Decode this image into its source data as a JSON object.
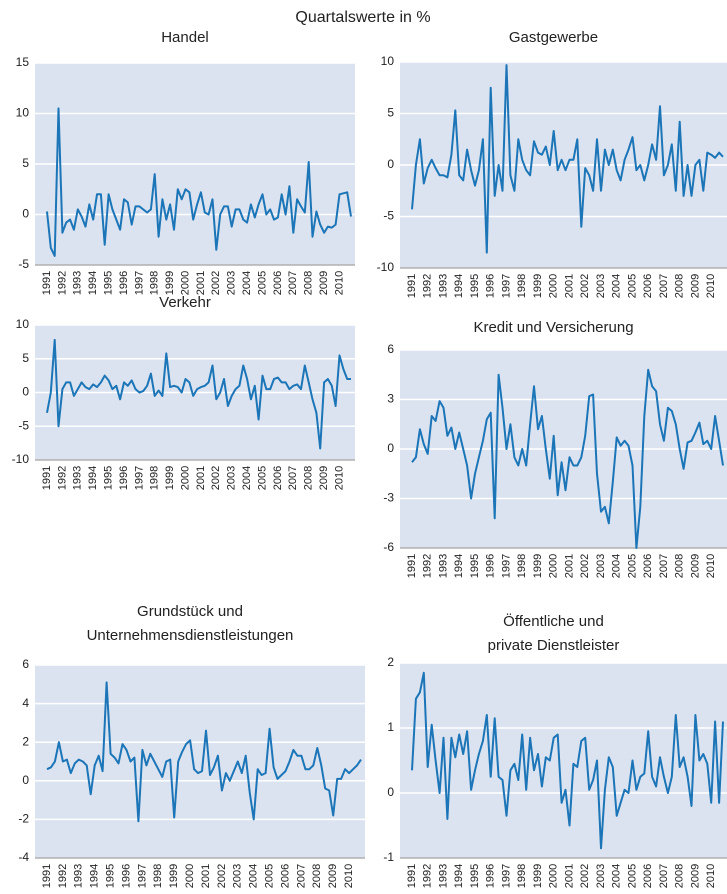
{
  "title": "Quartalswerte in %",
  "chart_data": [
    {
      "type": "line",
      "title": "Handel",
      "ylim": [
        -5,
        15
      ],
      "yticks": [
        -5,
        0,
        5,
        10,
        15
      ],
      "grid": true,
      "categories": [
        "1991",
        null,
        null,
        null,
        "1992",
        null,
        null,
        null,
        "1993",
        null,
        null,
        null,
        "1994",
        null,
        null,
        null,
        "1995",
        null,
        null,
        null,
        "1996",
        null,
        null,
        null,
        "1997",
        null,
        null,
        null,
        "1998",
        null,
        null,
        null,
        "1999",
        null,
        null,
        null,
        "2000",
        null,
        null,
        null,
        "2001",
        null,
        null,
        null,
        "2002",
        null,
        null,
        null,
        "2003",
        null,
        null,
        null,
        "2004",
        null,
        null,
        null,
        "2005",
        null,
        null,
        null,
        "2006",
        null,
        null,
        null,
        "2007",
        null,
        null,
        null,
        "2008",
        null,
        null,
        null,
        "2009",
        null,
        null,
        null,
        "2010",
        null,
        null,
        null
      ],
      "series": [
        {
          "color": "#1b75b7",
          "values": [
            0.3,
            -3.3,
            -4.1,
            10.5,
            -1.8,
            -0.8,
            -0.5,
            -1.5,
            0.5,
            -0.2,
            -1.2,
            1.0,
            -0.5,
            2.0,
            2.0,
            -3.0,
            2.0,
            0.5,
            -0.5,
            -1.5,
            1.5,
            1.2,
            -1.0,
            0.8,
            0.8,
            0.5,
            0.2,
            0.5,
            4.0,
            -2.2,
            1.5,
            -0.5,
            1.0,
            -1.5,
            2.5,
            1.5,
            2.5,
            2.2,
            -0.5,
            1.0,
            2.2,
            0.2,
            0.0,
            1.5,
            -3.5,
            0.0,
            0.8,
            0.8,
            -1.2,
            0.5,
            0.5,
            -0.5,
            -0.8,
            1.0,
            -0.3,
            1.0,
            2.0,
            0.0,
            0.5,
            -0.5,
            -0.3,
            2.0,
            0.0,
            2.8,
            -1.8,
            1.5,
            0.8,
            0.2,
            5.2,
            -2.2,
            0.3,
            -1.0,
            -1.8,
            -1.2,
            -1.3,
            -1.0,
            2.0,
            2.1,
            2.2,
            -0.2
          ]
        }
      ]
    },
    {
      "type": "line",
      "title": "Gastgewerbe",
      "ylim": [
        -10,
        10
      ],
      "yticks": [
        -10,
        -5,
        0,
        5,
        10
      ],
      "grid": true,
      "categories": [
        "1991",
        null,
        null,
        null,
        "1992",
        null,
        null,
        null,
        "1993",
        null,
        null,
        null,
        "1994",
        null,
        null,
        null,
        "1995",
        null,
        null,
        null,
        "1996",
        null,
        null,
        null,
        "1997",
        null,
        null,
        null,
        "1998",
        null,
        null,
        null,
        "1999",
        null,
        null,
        null,
        "2000",
        null,
        null,
        null,
        "2001",
        null,
        null,
        null,
        "2002",
        null,
        null,
        null,
        "2003",
        null,
        null,
        null,
        "2004",
        null,
        null,
        null,
        "2005",
        null,
        null,
        null,
        "2006",
        null,
        null,
        null,
        "2007",
        null,
        null,
        null,
        "2008",
        null,
        null,
        null,
        "2009",
        null,
        null,
        null,
        "2010",
        null,
        null,
        null
      ],
      "series": [
        {
          "color": "#1b75b7",
          "values": [
            -4.3,
            0.0,
            2.5,
            -1.8,
            -0.3,
            0.5,
            -0.3,
            -1.0,
            -1.0,
            -1.2,
            1.0,
            5.3,
            -1.0,
            -1.5,
            1.5,
            -0.5,
            -2.0,
            -0.5,
            2.5,
            -8.5,
            7.5,
            -3.0,
            0.0,
            -2.5,
            9.7,
            -1.0,
            -2.5,
            2.5,
            0.5,
            -0.5,
            -1.0,
            2.3,
            1.2,
            1.0,
            1.8,
            0.0,
            3.3,
            -0.5,
            0.5,
            -0.5,
            0.5,
            0.5,
            2.5,
            -6.0,
            -0.3,
            -1.0,
            -2.5,
            2.5,
            -2.5,
            1.5,
            0.0,
            1.5,
            -0.5,
            -1.5,
            0.5,
            1.5,
            2.7,
            -0.5,
            0.0,
            -1.5,
            0.0,
            2.0,
            0.5,
            5.7,
            -1.0,
            0.0,
            2.0,
            -2.5,
            4.2,
            -3.0,
            0.0,
            -3.0,
            0.0,
            0.5,
            -2.5,
            1.2,
            1.0,
            0.7,
            1.2,
            0.8
          ]
        }
      ]
    },
    {
      "type": "line",
      "title": "Verkehr",
      "ylim": [
        -10,
        10
      ],
      "yticks": [
        -10,
        -5,
        0,
        5,
        10
      ],
      "grid": true,
      "categories": [
        "1991",
        null,
        null,
        null,
        "1992",
        null,
        null,
        null,
        "1993",
        null,
        null,
        null,
        "1994",
        null,
        null,
        null,
        "1995",
        null,
        null,
        null,
        "1996",
        null,
        null,
        null,
        "1997",
        null,
        null,
        null,
        "1998",
        null,
        null,
        null,
        "1999",
        null,
        null,
        null,
        "2000",
        null,
        null,
        null,
        "2001",
        null,
        null,
        null,
        "2002",
        null,
        null,
        null,
        "2003",
        null,
        null,
        null,
        "2004",
        null,
        null,
        null,
        "2005",
        null,
        null,
        null,
        "2006",
        null,
        null,
        null,
        "2007",
        null,
        null,
        null,
        "2008",
        null,
        null,
        null,
        "2009",
        null,
        null,
        null,
        "2010",
        null,
        null,
        null
      ],
      "series": [
        {
          "color": "#1b75b7",
          "values": [
            -3.0,
            0.0,
            7.8,
            -5.0,
            0.5,
            1.5,
            1.5,
            -0.5,
            0.5,
            1.5,
            0.8,
            0.5,
            1.2,
            0.8,
            1.5,
            2.5,
            1.8,
            0.5,
            1.0,
            -1.0,
            1.5,
            1.0,
            1.8,
            0.5,
            0.0,
            0.2,
            1.0,
            2.8,
            -0.5,
            0.3,
            -0.5,
            5.8,
            0.8,
            1.0,
            0.8,
            0.0,
            2.0,
            1.5,
            -0.5,
            0.5,
            0.8,
            1.0,
            1.5,
            4.0,
            -1.0,
            0.0,
            2.0,
            -2.0,
            -0.5,
            0.5,
            1.0,
            4.0,
            2.0,
            -1.0,
            1.0,
            -4.0,
            2.5,
            0.5,
            0.5,
            2.0,
            2.2,
            1.5,
            1.5,
            0.5,
            1.0,
            1.2,
            0.5,
            4.0,
            1.5,
            -1.0,
            -3.0,
            -8.3,
            1.5,
            2.0,
            1.0,
            -2.0,
            5.5,
            3.5,
            2.0,
            2.0
          ]
        }
      ]
    },
    {
      "type": "line",
      "title": "Kredit und Versicherung",
      "ylim": [
        -6,
        6
      ],
      "yticks": [
        -6,
        -3,
        0,
        3,
        6
      ],
      "grid": true,
      "categories": [
        "1991",
        null,
        null,
        null,
        "1992",
        null,
        null,
        null,
        "1993",
        null,
        null,
        null,
        "1994",
        null,
        null,
        null,
        "1995",
        null,
        null,
        null,
        "1996",
        null,
        null,
        null,
        "1997",
        null,
        null,
        null,
        "1998",
        null,
        null,
        null,
        "1999",
        null,
        null,
        null,
        "2000",
        null,
        null,
        null,
        "2001",
        null,
        null,
        null,
        "2002",
        null,
        null,
        null,
        "2003",
        null,
        null,
        null,
        "2004",
        null,
        null,
        null,
        "2005",
        null,
        null,
        null,
        "2006",
        null,
        null,
        null,
        "2007",
        null,
        null,
        null,
        "2008",
        null,
        null,
        null,
        "2009",
        null,
        null,
        null,
        "2010",
        null,
        null,
        null
      ],
      "series": [
        {
          "color": "#1b75b7",
          "values": [
            -0.8,
            -0.5,
            1.2,
            0.3,
            -0.3,
            2.0,
            1.7,
            2.9,
            2.5,
            0.8,
            1.3,
            0.0,
            1.0,
            0.0,
            -1.0,
            -3.0,
            -1.5,
            -0.5,
            0.5,
            1.8,
            2.2,
            -4.2,
            4.5,
            2.5,
            0.0,
            1.5,
            -0.5,
            -1.0,
            0.0,
            -1.0,
            1.5,
            3.8,
            1.2,
            2.0,
            0.0,
            -1.8,
            0.8,
            -2.8,
            -0.8,
            -2.5,
            -0.5,
            -1.0,
            -1.0,
            -0.5,
            0.8,
            3.2,
            3.3,
            -1.5,
            -3.8,
            -3.5,
            -4.5,
            -2.0,
            0.7,
            0.2,
            0.5,
            0.2,
            -1.0,
            -6.0,
            -3.5,
            2.0,
            4.8,
            3.8,
            3.5,
            1.5,
            0.5,
            2.5,
            2.3,
            1.5,
            0.0,
            -1.2,
            0.4,
            0.5,
            1.0,
            1.6,
            0.3,
            0.5,
            0.0,
            2.0,
            0.5,
            -1.0
          ]
        }
      ]
    },
    {
      "type": "line",
      "title": [
        "Grundstück und",
        "Unternehmensdienstleistungen"
      ],
      "ylim": [
        -4,
        6
      ],
      "yticks": [
        -4,
        -2,
        0,
        2,
        4,
        6
      ],
      "grid": true,
      "categories": [
        "1991",
        null,
        null,
        null,
        "1992",
        null,
        null,
        null,
        "1993",
        null,
        null,
        null,
        "1994",
        null,
        null,
        null,
        "1995",
        null,
        null,
        null,
        "1996",
        null,
        null,
        null,
        "1997",
        null,
        null,
        null,
        "1998",
        null,
        null,
        null,
        "1999",
        null,
        null,
        null,
        "2000",
        null,
        null,
        null,
        "2001",
        null,
        null,
        null,
        "2002",
        null,
        null,
        null,
        "2003",
        null,
        null,
        null,
        "2004",
        null,
        null,
        null,
        "2005",
        null,
        null,
        null,
        "2006",
        null,
        null,
        null,
        "2007",
        null,
        null,
        null,
        "2008",
        null,
        null,
        null,
        "2009",
        null,
        null,
        null,
        "2010",
        null,
        null,
        null
      ],
      "series": [
        {
          "color": "#1b75b7",
          "values": [
            0.6,
            0.7,
            1.0,
            2.0,
            1.0,
            1.1,
            0.4,
            0.9,
            1.1,
            1.0,
            0.8,
            -0.7,
            0.8,
            1.3,
            0.5,
            5.1,
            1.4,
            1.2,
            0.9,
            1.9,
            1.6,
            1.0,
            1.2,
            -2.1,
            1.6,
            0.8,
            1.4,
            1.0,
            0.6,
            0.2,
            1.0,
            1.1,
            -1.9,
            1.0,
            1.5,
            1.9,
            2.1,
            0.6,
            0.4,
            0.5,
            2.6,
            0.3,
            0.7,
            1.3,
            -0.5,
            0.4,
            0.0,
            0.5,
            1.0,
            0.4,
            1.3,
            -0.6,
            -2.0,
            0.6,
            0.3,
            0.4,
            2.7,
            0.7,
            0.1,
            0.3,
            0.5,
            1.0,
            1.6,
            1.3,
            1.3,
            0.6,
            0.6,
            0.8,
            1.7,
            0.8,
            -0.4,
            -0.5,
            -1.8,
            0.1,
            0.1,
            0.6,
            0.4,
            0.6,
            0.8,
            1.1
          ]
        }
      ]
    },
    {
      "type": "line",
      "title": [
        "Öffentliche und",
        "private Dienstleister"
      ],
      "ylim": [
        -1,
        2
      ],
      "yticks": [
        -1,
        0,
        1,
        2
      ],
      "grid": true,
      "categories": [
        "1991",
        null,
        null,
        null,
        "1992",
        null,
        null,
        null,
        "1993",
        null,
        null,
        null,
        "1994",
        null,
        null,
        null,
        "1995",
        null,
        null,
        null,
        "1996",
        null,
        null,
        null,
        "1997",
        null,
        null,
        null,
        "1998",
        null,
        null,
        null,
        "1999",
        null,
        null,
        null,
        "2000",
        null,
        null,
        null,
        "2001",
        null,
        null,
        null,
        "2002",
        null,
        null,
        null,
        "2003",
        null,
        null,
        null,
        "2004",
        null,
        null,
        null,
        "2005",
        null,
        null,
        null,
        "2006",
        null,
        null,
        null,
        "2007",
        null,
        null,
        null,
        "2008",
        null,
        null,
        null,
        "2009",
        null,
        null,
        null,
        "2010",
        null,
        null,
        null
      ],
      "series": [
        {
          "color": "#1b75b7",
          "values": [
            0.35,
            1.45,
            1.55,
            1.85,
            0.4,
            1.05,
            0.5,
            0.0,
            0.85,
            -0.4,
            0.85,
            0.55,
            0.9,
            0.6,
            0.95,
            0.05,
            0.35,
            0.6,
            0.8,
            1.2,
            0.25,
            1.15,
            0.25,
            0.2,
            -0.35,
            0.35,
            0.45,
            0.2,
            0.9,
            0.05,
            0.85,
            0.35,
            0.6,
            0.1,
            0.55,
            0.5,
            0.85,
            0.9,
            -0.15,
            0.05,
            -0.5,
            0.45,
            0.4,
            0.8,
            0.85,
            0.05,
            0.2,
            0.5,
            -0.85,
            0.05,
            0.55,
            0.4,
            -0.35,
            -0.15,
            0.05,
            0.0,
            0.5,
            0.05,
            0.25,
            0.3,
            0.95,
            0.25,
            0.1,
            0.55,
            0.25,
            0.0,
            0.25,
            1.2,
            0.4,
            0.55,
            0.25,
            -0.2,
            1.2,
            0.5,
            0.6,
            0.45,
            -0.15,
            1.1,
            -0.15,
            1.1
          ]
        }
      ]
    }
  ]
}
